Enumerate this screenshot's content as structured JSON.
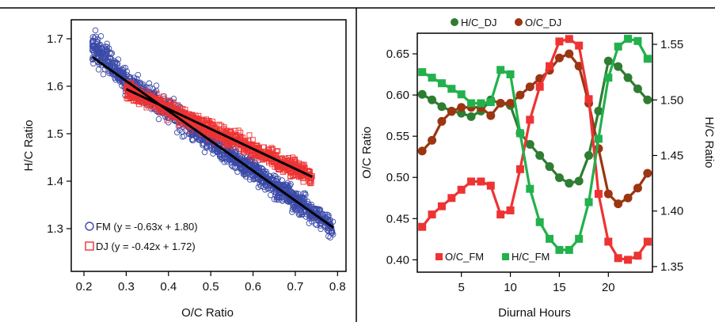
{
  "chart_data": [
    {
      "type": "scatter",
      "xlabel": "O/C Ratio",
      "ylabel": "H/C Ratio",
      "xlim": [
        0.17,
        0.82
      ],
      "ylim": [
        1.21,
        1.74
      ],
      "xticks": [
        "0.2",
        "0.3",
        "0.4",
        "0.5",
        "0.6",
        "0.7",
        "0.8"
      ],
      "yticks": [
        "1.3",
        "1.4",
        "1.5",
        "1.6",
        "1.7"
      ],
      "colors": {
        "FM": "#3b4aa8",
        "DJ": "#ee3333",
        "fit": "#000000"
      },
      "series": [
        {
          "name": "FM (y = -0.63x + 1.80)",
          "marker": "circle",
          "x_range": [
            0.22,
            0.79
          ],
          "fit": {
            "slope": -0.63,
            "intercept": 1.8
          }
        },
        {
          "name": "DJ  (y = -0.42x + 1.72)",
          "marker": "square",
          "x_range": [
            0.3,
            0.74
          ],
          "fit": {
            "slope": -0.42,
            "intercept": 1.72
          }
        }
      ]
    },
    {
      "type": "line",
      "xlabel": "Diurnal Hours",
      "ylabel_left": "O/C Ratio",
      "ylabel_right": "H/C Ratio",
      "xlim": [
        0.5,
        24.5
      ],
      "ylim_left": [
        0.385,
        0.675
      ],
      "ylim_right": [
        1.345,
        1.56
      ],
      "xticks": [
        "5",
        "10",
        "15",
        "20"
      ],
      "yticks_left": [
        "0.40",
        "0.45",
        "0.50",
        "0.55",
        "0.60",
        "0.65"
      ],
      "yticks_right": [
        "1.35",
        "1.40",
        "1.45",
        "1.50",
        "1.55"
      ],
      "x": [
        1,
        2,
        3,
        4,
        5,
        6,
        7,
        8,
        9,
        10,
        11,
        12,
        13,
        14,
        15,
        16,
        17,
        18,
        19,
        20,
        21,
        22,
        23,
        24
      ],
      "series": [
        {
          "name": "H/C_DJ",
          "axis": "right",
          "marker": "circle",
          "color": "#2e7d32",
          "values": [
            1.505,
            1.5,
            1.494,
            1.49,
            1.488,
            1.485,
            1.49,
            1.5,
            1.497,
            1.495,
            1.47,
            1.46,
            1.45,
            1.44,
            1.43,
            1.425,
            1.427,
            1.45,
            1.49,
            1.535,
            1.53,
            1.52,
            1.51,
            1.5
          ]
        },
        {
          "name": "O/C_DJ",
          "axis": "left",
          "marker": "circle",
          "color": "#9c3512",
          "values": [
            0.532,
            0.545,
            0.568,
            0.58,
            0.585,
            0.585,
            0.585,
            0.575,
            0.59,
            0.59,
            0.6,
            0.61,
            0.62,
            0.63,
            0.645,
            0.65,
            0.635,
            0.59,
            0.535,
            0.48,
            0.468,
            0.475,
            0.487,
            0.505
          ]
        },
        {
          "name": "O/C_FM",
          "axis": "left",
          "marker": "square",
          "color": "#ee3333",
          "values": [
            0.44,
            0.455,
            0.465,
            0.475,
            0.485,
            0.495,
            0.495,
            0.49,
            0.455,
            0.46,
            0.51,
            0.57,
            0.61,
            0.635,
            0.665,
            0.668,
            0.66,
            0.595,
            0.48,
            0.422,
            0.402,
            0.4,
            0.405,
            0.422
          ]
        },
        {
          "name": "H/C_FM",
          "axis": "right",
          "marker": "square",
          "color": "#22b14c",
          "values": [
            1.525,
            1.52,
            1.515,
            1.51,
            1.505,
            1.497,
            1.497,
            1.498,
            1.527,
            1.523,
            1.47,
            1.42,
            1.39,
            1.375,
            1.365,
            1.365,
            1.375,
            1.408,
            1.465,
            1.52,
            1.548,
            1.555,
            1.553,
            1.537
          ]
        }
      ],
      "legend_top": [
        "H/C_DJ",
        "O/C_DJ"
      ],
      "legend_bottom": [
        "O/C_FM",
        "H/C_FM"
      ]
    }
  ]
}
